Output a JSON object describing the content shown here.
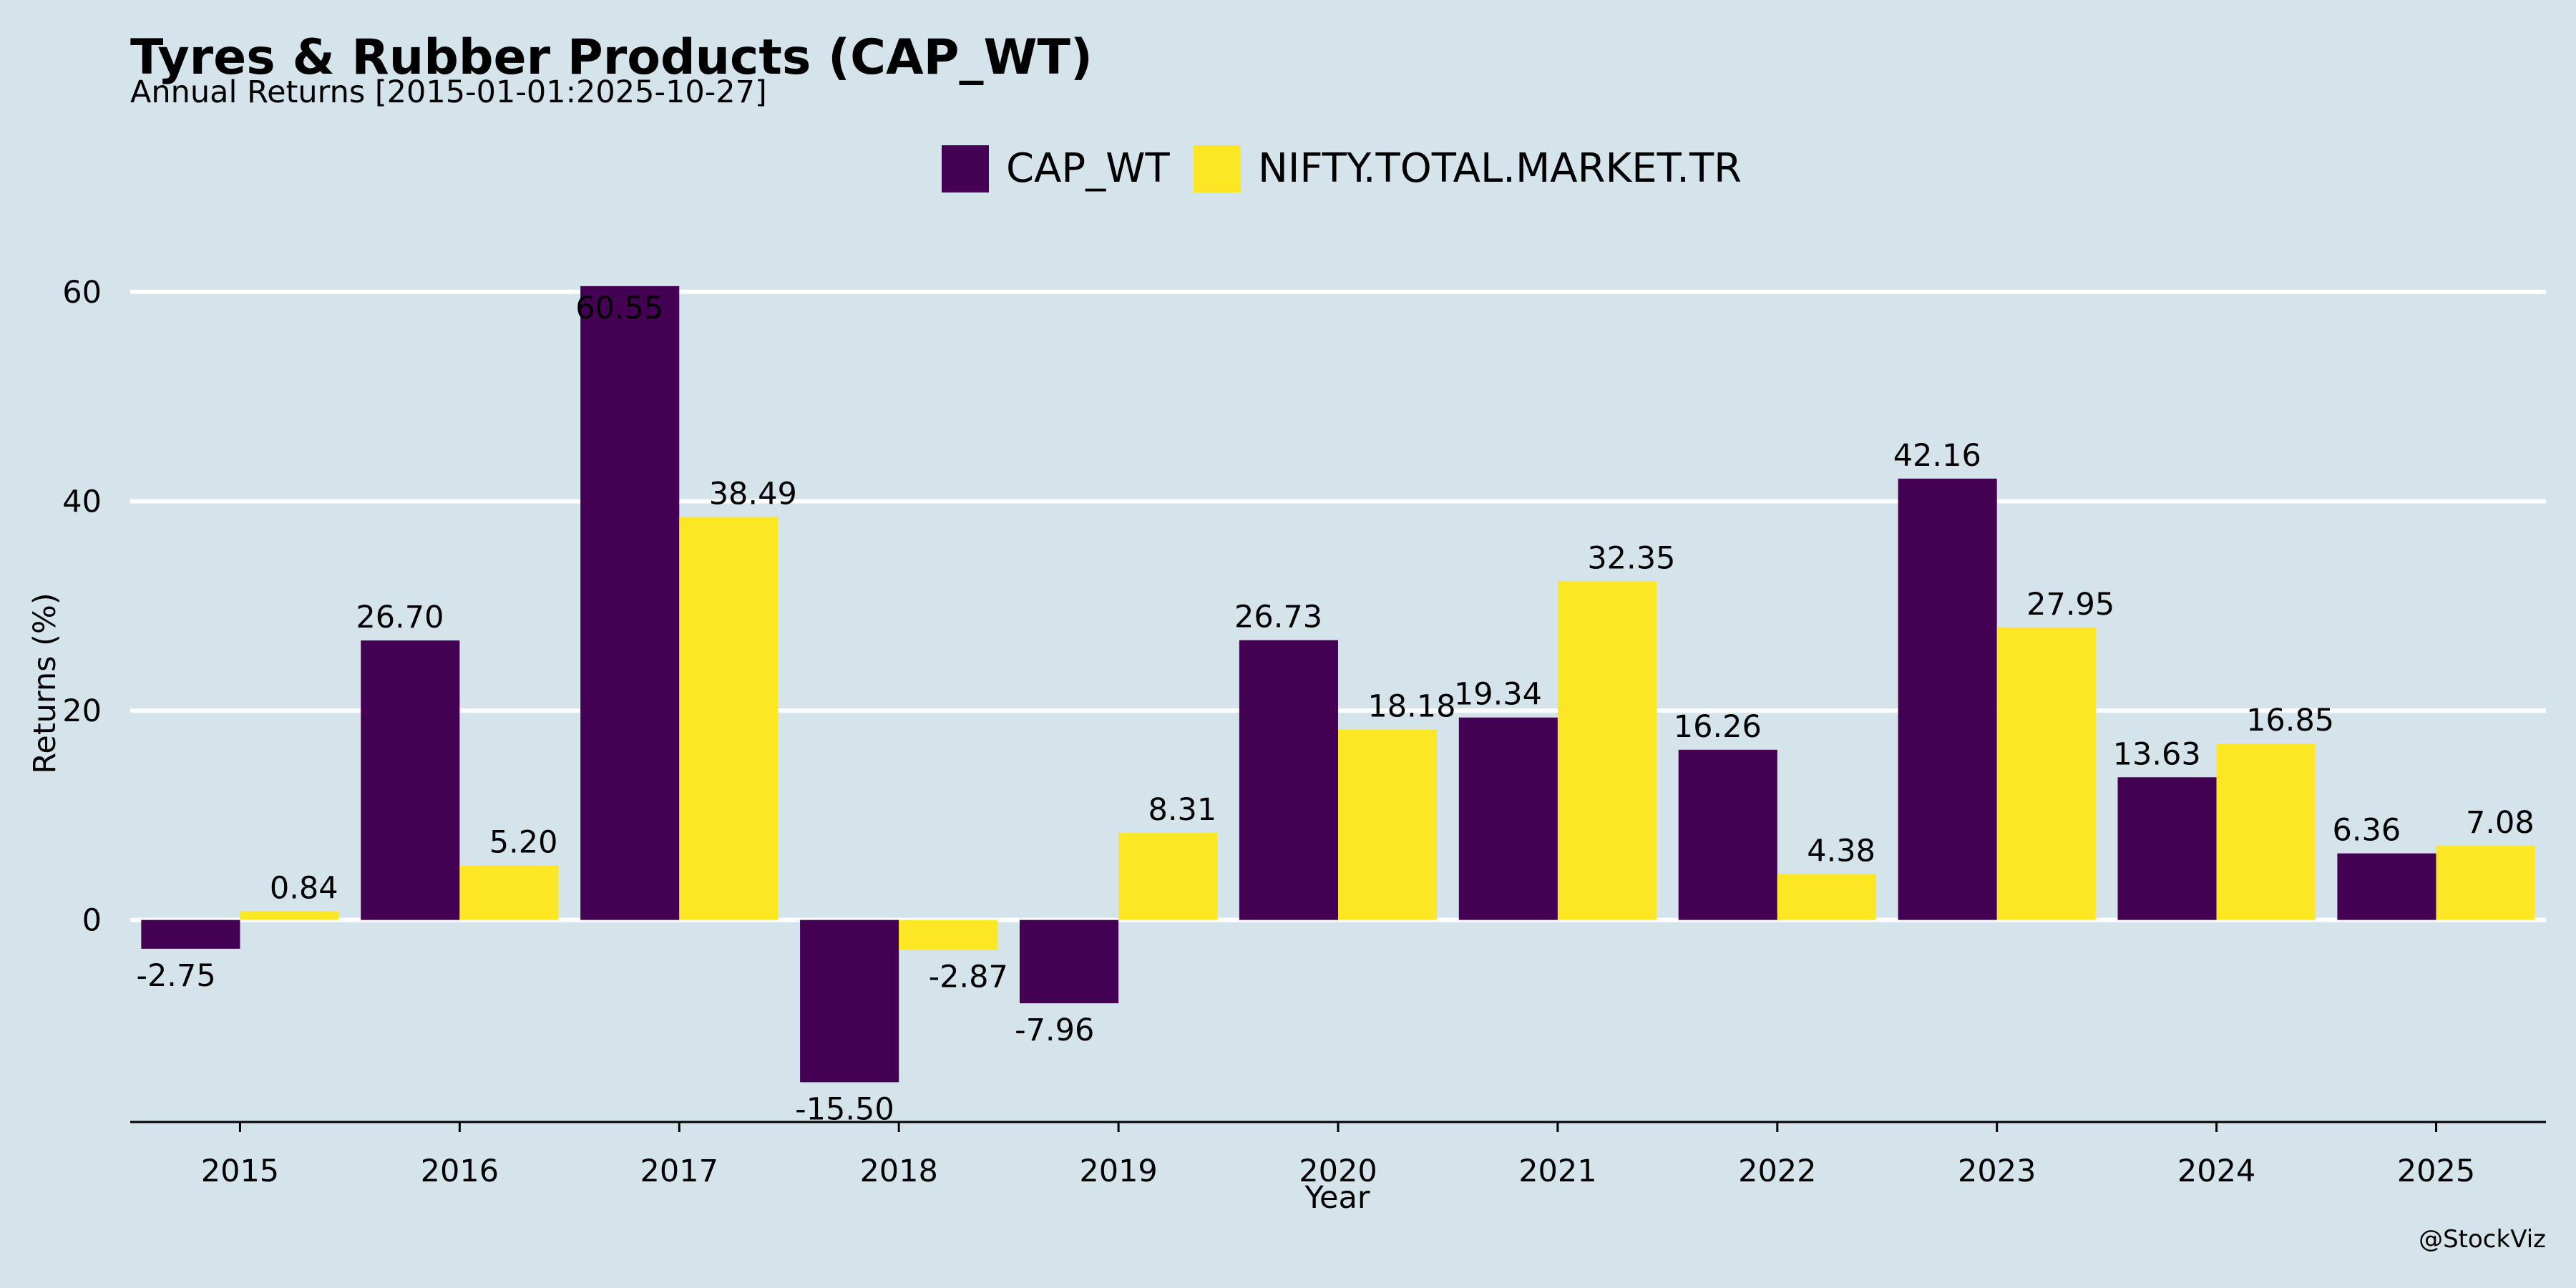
{
  "page": {
    "background": "#d5e4eb",
    "watermark": "@StockViz"
  },
  "chart_data": {
    "type": "bar",
    "title": "Tyres & Rubber Products (CAP_WT)",
    "subtitle": "Annual Returns [2015-01-01:2025-10-27]",
    "xlabel": "Year",
    "ylabel": "Returns (%)",
    "categories": [
      "2015",
      "2016",
      "2017",
      "2018",
      "2019",
      "2020",
      "2021",
      "2022",
      "2023",
      "2024",
      "2025"
    ],
    "series": [
      {
        "name": "CAP_WT",
        "color": "#440154",
        "values": [
          -2.75,
          26.7,
          60.55,
          -15.5,
          -7.96,
          26.73,
          19.34,
          16.26,
          42.16,
          13.63,
          6.36
        ],
        "labels": [
          "-2.75",
          "26.70",
          "60.55",
          "-15.50",
          "-7.96",
          "26.73",
          "19.34",
          "16.26",
          "42.16",
          "13.63",
          "6.36"
        ]
      },
      {
        "name": "NIFTY.TOTAL.MARKET.TR",
        "color": "#fde725",
        "values": [
          0.84,
          5.2,
          38.49,
          -2.87,
          8.31,
          18.18,
          32.35,
          4.38,
          27.95,
          16.85,
          7.08
        ],
        "labels": [
          "0.84",
          "5.20",
          "38.49",
          "-2.87",
          "8.31",
          "18.18",
          "32.35",
          "4.38",
          "27.95",
          "16.85",
          "7.08"
        ]
      }
    ],
    "yticks": [
      0,
      20,
      40,
      60
    ],
    "ylim": [
      -19.3,
      64.3
    ],
    "grid": true,
    "legend": "top-center"
  }
}
